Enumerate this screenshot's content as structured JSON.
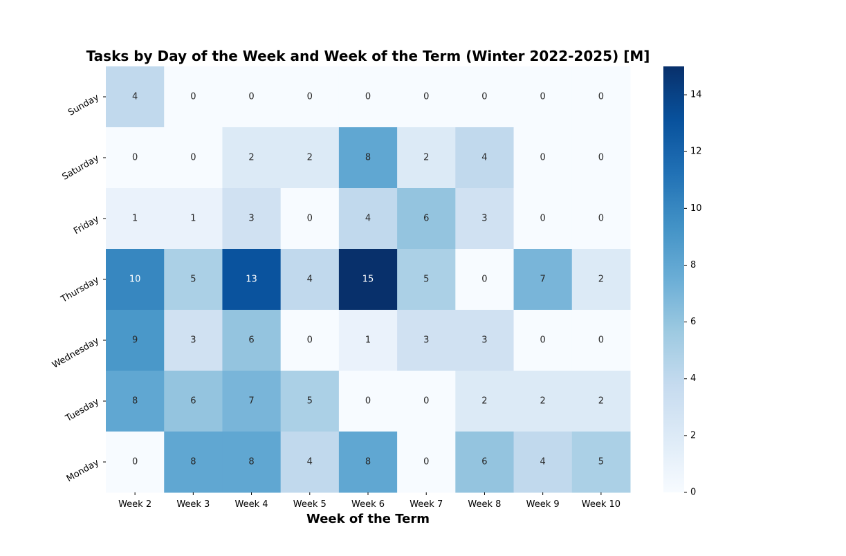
{
  "chart_data": {
    "type": "heatmap",
    "title": "Tasks by Day of the Week and Week of the Term (Winter 2022-2025) [M]",
    "xlabel": "Week of the Term",
    "ylabel": "",
    "x_categories": [
      "Week 2",
      "Week 3",
      "Week 4",
      "Week 5",
      "Week 6",
      "Week 7",
      "Week 8",
      "Week 9",
      "Week 10"
    ],
    "y_categories": [
      "Sunday",
      "Saturday",
      "Friday",
      "Thursday",
      "Wednesday",
      "Tuesday",
      "Monday"
    ],
    "values": [
      [
        4,
        0,
        0,
        0,
        0,
        0,
        0,
        0,
        0
      ],
      [
        0,
        0,
        2,
        2,
        8,
        2,
        4,
        0,
        0
      ],
      [
        1,
        1,
        3,
        0,
        4,
        6,
        3,
        0,
        0
      ],
      [
        10,
        5,
        13,
        4,
        15,
        5,
        0,
        7,
        2
      ],
      [
        9,
        3,
        6,
        0,
        1,
        3,
        3,
        0,
        0
      ],
      [
        8,
        6,
        7,
        5,
        0,
        0,
        2,
        2,
        2
      ],
      [
        0,
        8,
        8,
        4,
        8,
        0,
        6,
        4,
        5
      ]
    ],
    "colormap": "Blues",
    "color_range": [
      0,
      15
    ],
    "colorbar_ticks": [
      0,
      2,
      4,
      6,
      8,
      10,
      12,
      14
    ],
    "colorbar_ticks_labels": [
      "0",
      "2",
      "4",
      "6",
      "8",
      "10",
      "12",
      "14"
    ],
    "grid": false
  }
}
